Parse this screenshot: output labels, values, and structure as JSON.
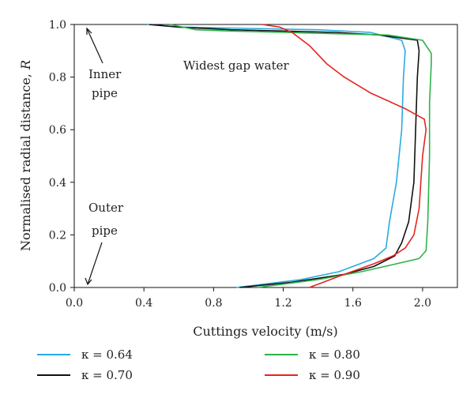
{
  "chart_data": {
    "type": "line",
    "annotation": "Widest gap water",
    "xlabel": "Cuttings velocity (m/s)",
    "ylabel_main": "Normalised radial distance, ",
    "ylabel_italic": "R",
    "xlim": [
      0.0,
      2.2
    ],
    "ylim": [
      0.0,
      1.0
    ],
    "xticks": [
      "0.0",
      "0.4",
      "0.8",
      "1.2",
      "1.6",
      "2.0"
    ],
    "yticks": [
      "0.0",
      "0.2",
      "0.4",
      "0.6",
      "0.8",
      "1.0"
    ],
    "grid": false,
    "legend_position": "bottom",
    "side_labels": {
      "inner": [
        "Inner",
        "pipe"
      ],
      "outer": [
        "Outer",
        "pipe"
      ]
    },
    "series": [
      {
        "name": "κ = 0.64",
        "color": "#29abe2",
        "points": [
          [
            0.93,
            0.0
          ],
          [
            1.3,
            0.03
          ],
          [
            1.52,
            0.06
          ],
          [
            1.6,
            0.08
          ],
          [
            1.72,
            0.11
          ],
          [
            1.79,
            0.15
          ],
          [
            1.81,
            0.25
          ],
          [
            1.85,
            0.4
          ],
          [
            1.88,
            0.6
          ],
          [
            1.89,
            0.8
          ],
          [
            1.9,
            0.9
          ],
          [
            1.88,
            0.94
          ],
          [
            1.7,
            0.97
          ],
          [
            1.4,
            0.98
          ],
          [
            1.0,
            0.985
          ],
          [
            0.6,
            0.99
          ],
          [
            0.42,
            1.0
          ]
        ]
      },
      {
        "name": "κ = 0.70",
        "color": "#111111",
        "points": [
          [
            0.95,
            0.0
          ],
          [
            1.25,
            0.02
          ],
          [
            1.55,
            0.05
          ],
          [
            1.72,
            0.08
          ],
          [
            1.84,
            0.12
          ],
          [
            1.88,
            0.17
          ],
          [
            1.92,
            0.25
          ],
          [
            1.95,
            0.4
          ],
          [
            1.96,
            0.6
          ],
          [
            1.97,
            0.8
          ],
          [
            1.98,
            0.9
          ],
          [
            1.97,
            0.94
          ],
          [
            1.75,
            0.96
          ],
          [
            1.5,
            0.97
          ],
          [
            1.2,
            0.975
          ],
          [
            0.9,
            0.98
          ],
          [
            0.6,
            0.99
          ],
          [
            0.43,
            1.0
          ]
        ]
      },
      {
        "name": "κ = 0.80",
        "color": "#2db34a",
        "points": [
          [
            1.05,
            0.0
          ],
          [
            1.4,
            0.03
          ],
          [
            1.65,
            0.06
          ],
          [
            1.85,
            0.09
          ],
          [
            1.98,
            0.11
          ],
          [
            2.02,
            0.14
          ],
          [
            2.03,
            0.25
          ],
          [
            2.04,
            0.5
          ],
          [
            2.04,
            0.7
          ],
          [
            2.05,
            0.85
          ],
          [
            2.05,
            0.89
          ],
          [
            2.0,
            0.94
          ],
          [
            1.8,
            0.96
          ],
          [
            1.5,
            0.965
          ],
          [
            1.2,
            0.97
          ],
          [
            0.9,
            0.975
          ],
          [
            0.7,
            0.98
          ],
          [
            0.55,
            1.0
          ]
        ]
      },
      {
        "name": "κ = 0.90",
        "color": "#e52421",
        "points": [
          [
            1.35,
            0.0
          ],
          [
            1.55,
            0.05
          ],
          [
            1.72,
            0.09
          ],
          [
            1.83,
            0.12
          ],
          [
            1.9,
            0.15
          ],
          [
            1.95,
            0.2
          ],
          [
            1.98,
            0.3
          ],
          [
            1.99,
            0.4
          ],
          [
            2.0,
            0.5
          ],
          [
            2.02,
            0.6
          ],
          [
            2.01,
            0.64
          ],
          [
            1.9,
            0.68
          ],
          [
            1.7,
            0.74
          ],
          [
            1.55,
            0.8
          ],
          [
            1.45,
            0.85
          ],
          [
            1.35,
            0.92
          ],
          [
            1.25,
            0.97
          ],
          [
            1.18,
            0.99
          ],
          [
            1.08,
            1.0
          ]
        ]
      }
    ]
  }
}
